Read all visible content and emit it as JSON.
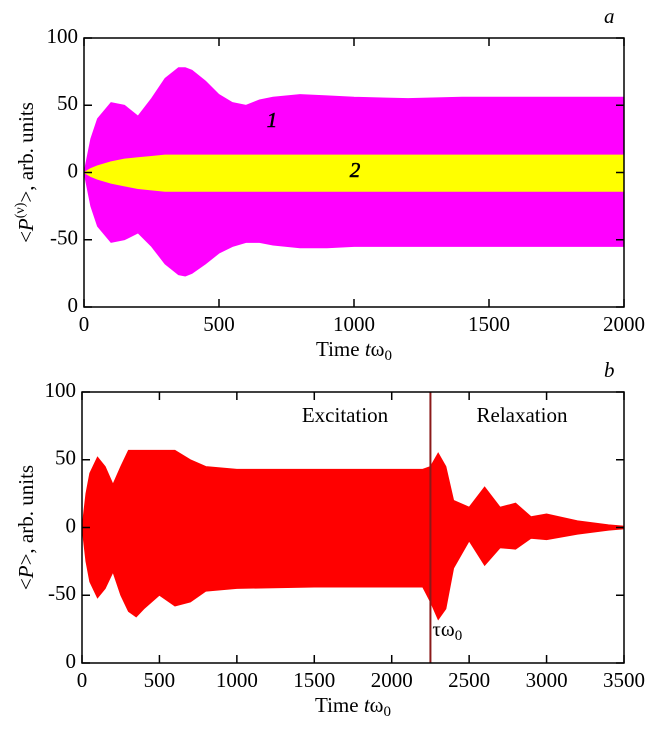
{
  "chart_data": [
    {
      "type": "band",
      "panel_label": "a",
      "xlabel": {
        "text": "Time ",
        "italic": "t",
        "main": "ω",
        "sub": "0"
      },
      "ylabel": {
        "text": "<",
        "italic": "P",
        "sup": "(ν)",
        "tail": ">, arb. units"
      },
      "xlim": [
        0,
        2000
      ],
      "ylim": [
        -100,
        100
      ],
      "xticks": [
        0,
        500,
        1000,
        1500,
        2000
      ],
      "yticks": [
        {
          "value": -100,
          "label": "0"
        },
        -50,
        0,
        50,
        100
      ],
      "x": [
        0,
        25,
        50,
        100,
        150,
        200,
        250,
        300,
        350,
        375,
        400,
        450,
        500,
        550,
        600,
        650,
        700,
        800,
        900,
        1000,
        1200,
        1400,
        1600,
        1800,
        2000
      ],
      "series": [
        {
          "name": "1",
          "color": "#ff00ff",
          "upper": [
            0,
            25,
            40,
            52,
            50,
            42,
            55,
            70,
            78,
            78,
            76,
            68,
            58,
            52,
            50,
            54,
            56,
            58,
            57,
            56,
            55,
            56,
            56,
            56,
            56
          ],
          "lower": [
            0,
            -25,
            -40,
            -52,
            -50,
            -45,
            -55,
            -68,
            -76,
            -77,
            -75,
            -68,
            -60,
            -55,
            -52,
            -52,
            -54,
            -56,
            -56,
            -55,
            -55,
            -55,
            -55,
            -55,
            -55
          ]
        },
        {
          "name": "2",
          "color": "#ffff00",
          "upper": [
            0,
            3,
            5,
            8,
            10,
            11,
            12,
            13,
            13,
            13,
            13,
            13,
            13,
            13,
            13,
            13,
            13,
            13,
            13,
            13,
            13,
            13,
            13,
            13,
            13
          ],
          "lower": [
            0,
            -3,
            -5,
            -8,
            -10,
            -12,
            -13,
            -14,
            -14,
            -14,
            -14,
            -14,
            -14,
            -14,
            -14,
            -14,
            -14,
            -14,
            -14,
            -14,
            -14,
            -14,
            -14,
            -14,
            -14
          ]
        }
      ]
    },
    {
      "type": "band",
      "panel_label": "b",
      "xlabel": {
        "text": "Time ",
        "italic": "t",
        "main": "ω",
        "sub": "0"
      },
      "ylabel": {
        "text": "<",
        "italic": "P",
        "sup": "",
        "tail": ">, arb. units"
      },
      "xlim": [
        0,
        3500
      ],
      "ylim": [
        -100,
        100
      ],
      "xticks": [
        0,
        500,
        1000,
        1500,
        2000,
        2500,
        3000,
        3500
      ],
      "yticks": [
        {
          "value": -100,
          "label": "0"
        },
        -50,
        0,
        50,
        100
      ],
      "x": [
        0,
        25,
        50,
        100,
        150,
        200,
        250,
        300,
        350,
        400,
        500,
        600,
        700,
        800,
        1000,
        1500,
        2000,
        2200,
        2250,
        2300,
        2350,
        2400,
        2500,
        2600,
        2700,
        2800,
        2900,
        3000,
        3200,
        3400,
        3500
      ],
      "series": [
        {
          "color": "#ff0000",
          "upper": [
            0,
            25,
            40,
            52,
            45,
            32,
            45,
            57,
            57,
            57,
            57,
            57,
            50,
            45,
            43,
            43,
            43,
            43,
            45,
            55,
            45,
            20,
            15,
            30,
            15,
            18,
            8,
            10,
            5,
            2,
            1
          ],
          "lower": [
            0,
            -25,
            -40,
            -52,
            -45,
            -33,
            -50,
            -62,
            -66,
            -60,
            -50,
            -58,
            -55,
            -47,
            -45,
            -44,
            -44,
            -44,
            -55,
            -68,
            -60,
            -30,
            -10,
            -28,
            -15,
            -16,
            -8,
            -9,
            -5,
            -2,
            -1
          ]
        }
      ],
      "vline": {
        "x": 2250,
        "color": "#8b1a1a",
        "text": "τω",
        "sub": "0"
      },
      "annotations": [
        "Excitation",
        "Relaxation"
      ]
    }
  ]
}
